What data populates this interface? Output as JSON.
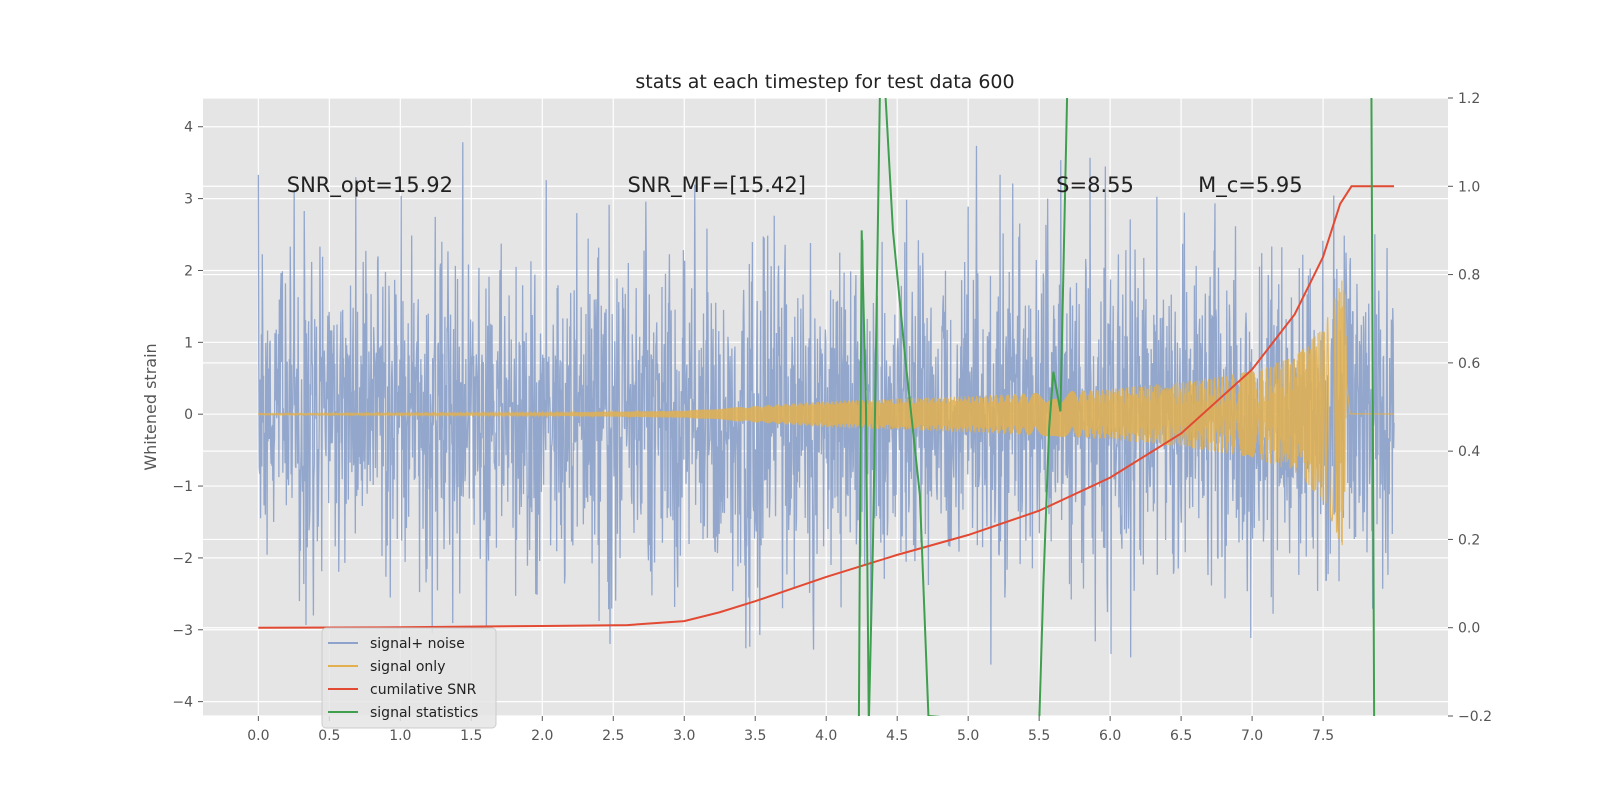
{
  "chart_data": {
    "type": "line",
    "title": "stats at each timestep for test data 600",
    "xlabel": "",
    "ylabel": "Whitened strain",
    "y2label": "",
    "xlim": [
      -0.39,
      8.38
    ],
    "ylim": [
      -4.2,
      4.4
    ],
    "y2lim": [
      -0.2,
      1.2
    ],
    "grid": true,
    "legend_position": "lower-left",
    "x_ticks": [
      "0.0",
      "0.5",
      "1.0",
      "1.5",
      "2.0",
      "2.5",
      "3.0",
      "3.5",
      "4.0",
      "4.5",
      "5.0",
      "5.5",
      "6.0",
      "6.5",
      "7.0",
      "7.5"
    ],
    "y_ticks": [
      "4",
      "3",
      "2",
      "1",
      "0",
      "−1",
      "−2",
      "−3",
      "−4"
    ],
    "y2_ticks": [
      "1.2",
      "1.0",
      "0.8",
      "0.6",
      "0.4",
      "0.2",
      "0.0",
      "−0.2"
    ],
    "colors": {
      "background": "#e5e5e5",
      "grid": "#ffffff",
      "signal_noise": "#8ea3cb",
      "signal_only": "#e2b04f",
      "cumulative_snr": "#e24a33",
      "signal_statistics": "#3f9f4f"
    },
    "annotations": [
      {
        "text": "SNR_opt=15.92",
        "x": 0.2,
        "y": 3.2
      },
      {
        "text": "SNR_MF=[15.42]",
        "x": 2.6,
        "y": 3.2
      },
      {
        "text": "S=8.55",
        "x": 5.62,
        "y": 3.2
      },
      {
        "text": "M_c=5.95",
        "x": 6.62,
        "y": 3.2
      }
    ],
    "series": [
      {
        "name": "signal+ noise",
        "kind": "noise",
        "x_start": 0.0,
        "x_end": 8.0,
        "peak_low": -3.6,
        "peak_high": 4.0
      },
      {
        "name": "signal only",
        "kind": "chirp",
        "x_start": 0.0,
        "x_merger": 7.65,
        "x_end": 8.0,
        "envelope": [
          [
            0.0,
            0.01
          ],
          [
            2.0,
            0.02
          ],
          [
            3.0,
            0.05
          ],
          [
            4.0,
            0.18
          ],
          [
            5.0,
            0.25
          ],
          [
            6.0,
            0.35
          ],
          [
            6.5,
            0.45
          ],
          [
            7.0,
            0.6
          ],
          [
            7.3,
            0.8
          ],
          [
            7.5,
            1.2
          ],
          [
            7.62,
            1.8
          ],
          [
            7.66,
            2.1
          ],
          [
            7.69,
            0.02
          ],
          [
            8.0,
            0.01
          ]
        ]
      },
      {
        "name": "cumilative SNR",
        "kind": "line",
        "axis": "right",
        "points": [
          [
            0.0,
            0.0
          ],
          [
            1.0,
            0.001
          ],
          [
            2.0,
            0.004
          ],
          [
            2.6,
            0.006
          ],
          [
            3.0,
            0.015
          ],
          [
            3.25,
            0.035
          ],
          [
            3.5,
            0.06
          ],
          [
            4.0,
            0.115
          ],
          [
            4.5,
            0.165
          ],
          [
            5.0,
            0.21
          ],
          [
            5.5,
            0.265
          ],
          [
            6.0,
            0.34
          ],
          [
            6.5,
            0.44
          ],
          [
            7.0,
            0.585
          ],
          [
            7.3,
            0.71
          ],
          [
            7.5,
            0.84
          ],
          [
            7.62,
            0.96
          ],
          [
            7.7,
            1.0
          ],
          [
            8.0,
            1.0
          ]
        ]
      },
      {
        "name": "signal statistics",
        "kind": "line",
        "axis": "right",
        "points": [
          [
            4.23,
            -0.22
          ],
          [
            4.25,
            0.9
          ],
          [
            4.28,
            0.5
          ],
          [
            4.3,
            -0.22
          ],
          [
            4.33,
            0.2
          ],
          [
            4.38,
            1.25
          ],
          [
            4.41,
            1.25
          ],
          [
            4.47,
            0.9
          ],
          [
            4.56,
            0.6
          ],
          [
            4.66,
            0.3
          ],
          [
            4.72,
            -0.2
          ],
          [
            5.5,
            -0.22
          ],
          [
            5.53,
            0.1
          ],
          [
            5.57,
            0.45
          ],
          [
            5.6,
            0.58
          ],
          [
            5.65,
            0.49
          ],
          [
            5.7,
            1.25
          ],
          [
            7.84,
            1.25
          ],
          [
            7.86,
            -0.22
          ]
        ]
      }
    ]
  }
}
